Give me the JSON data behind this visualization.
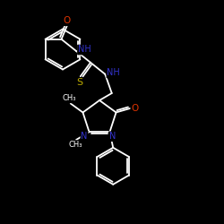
{
  "bg_color": "#000000",
  "bond_color": "#ffffff",
  "atom_colors": {
    "O": "#dd3300",
    "S": "#bbaa00",
    "N": "#3333cc",
    "C": "#ffffff",
    "H": "#ffffff"
  },
  "figsize": [
    2.5,
    2.5
  ],
  "dpi": 100,
  "lw": 1.3,
  "fs": 7.0,
  "xlim": [
    0,
    10
  ],
  "ylim": [
    0,
    10
  ]
}
